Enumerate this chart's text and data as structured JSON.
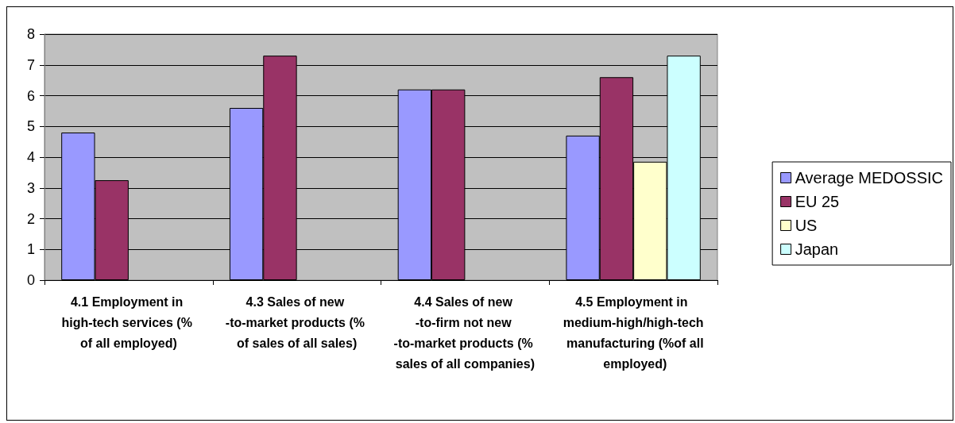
{
  "chart_data": {
    "type": "bar",
    "categories": [
      "4.1 Employment in high-tech services (% of all employed)",
      "4.3 Sales of new -to-market products (% of sales of all sales)",
      "4.4 Sales of new -to-firm not new -to-market products (% sales of all companies)",
      "4.5 Employment in medium-high/high-tech manufacturing (%of all employed)"
    ],
    "series": [
      {
        "name": "Average MEDOSSIC",
        "color": "#9999ff",
        "values": [
          4.8,
          5.6,
          6.2,
          4.7
        ]
      },
      {
        "name": "EU 25",
        "color": "#993366",
        "values": [
          3.25,
          7.3,
          6.2,
          6.6
        ]
      },
      {
        "name": "US",
        "color": "#ffffcc",
        "values": [
          null,
          null,
          null,
          3.85
        ]
      },
      {
        "name": "Japan",
        "color": "#ccffff",
        "values": [
          null,
          null,
          null,
          7.3
        ]
      }
    ],
    "ylim": [
      0,
      8
    ],
    "yticks": [
      0,
      1,
      2,
      3,
      4,
      5,
      6,
      7,
      8
    ],
    "grid": "y",
    "legend": "right"
  }
}
